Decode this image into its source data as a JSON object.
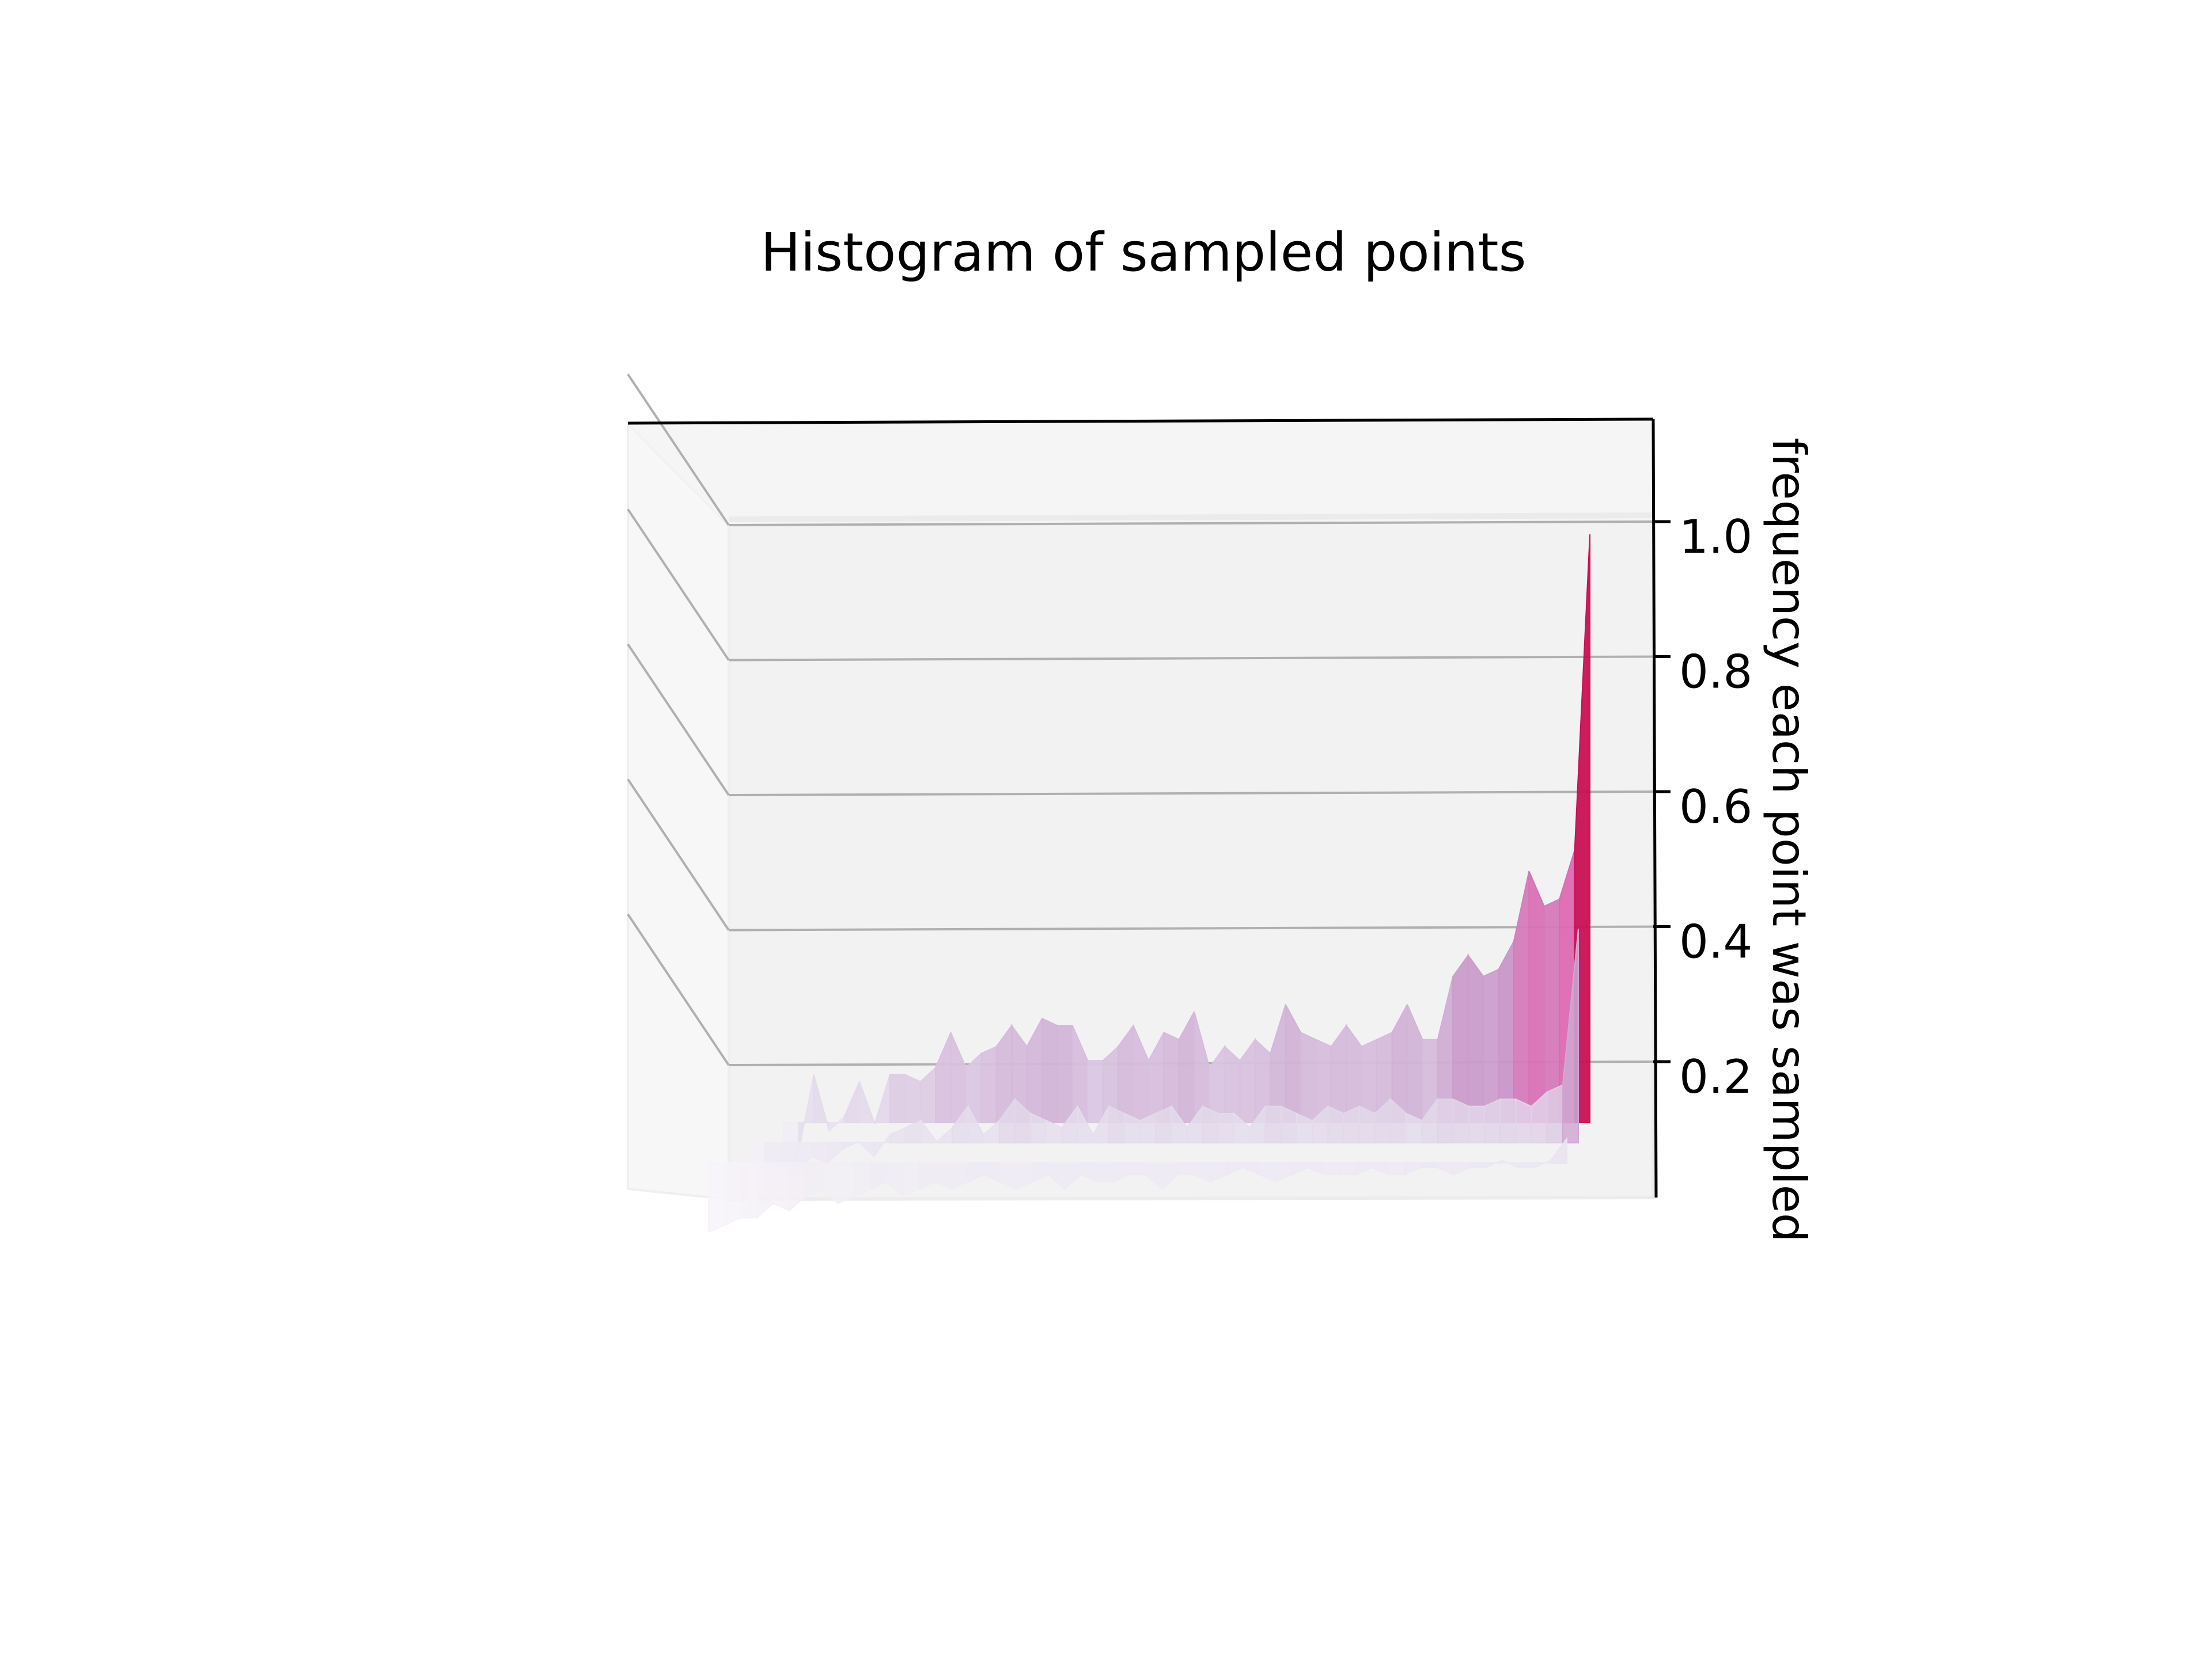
{
  "chart_data": {
    "type": "surface",
    "title": "Histogram of sampled points",
    "zlabel": "frequency each point was sampled",
    "zlim": [
      0.0,
      1.15
    ],
    "z_ticks": [
      "0.2",
      "0.4",
      "0.6",
      "0.8",
      "1.0"
    ],
    "z_tick_values": [
      0.2,
      0.4,
      0.6,
      0.8,
      1.0
    ],
    "grid": true,
    "colormap": [
      "#f7f4f9",
      "#e7e1ef",
      "#d4b9da",
      "#c994c7",
      "#df65b0",
      "#e7298a",
      "#ce1256",
      "#980043",
      "#67001f"
    ],
    "series": [
      {
        "values": [
          0.07,
          0.12,
          0.23,
          0.15,
          0.17,
          0.22,
          0.16,
          0.23,
          0.23,
          0.22,
          0.24,
          0.29,
          0.24,
          0.26,
          0.27,
          0.3,
          0.27,
          0.31,
          0.3,
          0.3,
          0.25,
          0.25,
          0.27,
          0.3,
          0.25,
          0.29,
          0.28,
          0.32,
          0.24,
          0.27,
          0.25,
          0.28,
          0.26,
          0.33,
          0.29,
          0.28,
          0.27,
          0.3,
          0.27,
          0.28,
          0.29,
          0.33,
          0.28,
          0.28,
          0.37,
          0.4,
          0.37,
          0.38,
          0.42,
          0.52,
          0.47,
          0.48,
          0.55,
          1.0
        ]
      },
      {
        "values": [
          0.05,
          0.09,
          0.12,
          0.1,
          0.13,
          0.12,
          0.14,
          0.15,
          0.13,
          0.16,
          0.17,
          0.18,
          0.15,
          0.17,
          0.2,
          0.16,
          0.18,
          0.21,
          0.19,
          0.18,
          0.17,
          0.2,
          0.16,
          0.2,
          0.19,
          0.18,
          0.19,
          0.2,
          0.17,
          0.2,
          0.19,
          0.19,
          0.17,
          0.2,
          0.2,
          0.19,
          0.18,
          0.2,
          0.19,
          0.2,
          0.19,
          0.21,
          0.19,
          0.18,
          0.21,
          0.21,
          0.2,
          0.2,
          0.21,
          0.21,
          0.2,
          0.22,
          0.23,
          0.45
        ]
      },
      {
        "values": [
          0.04,
          0.05,
          0.06,
          0.06,
          0.08,
          0.07,
          0.09,
          0.1,
          0.08,
          0.09,
          0.1,
          0.11,
          0.09,
          0.1,
          0.11,
          0.1,
          0.11,
          0.12,
          0.11,
          0.1,
          0.11,
          0.12,
          0.1,
          0.12,
          0.11,
          0.11,
          0.12,
          0.12,
          0.1,
          0.12,
          0.12,
          0.11,
          0.12,
          0.13,
          0.12,
          0.11,
          0.12,
          0.13,
          0.12,
          0.12,
          0.12,
          0.13,
          0.12,
          0.12,
          0.13,
          0.13,
          0.12,
          0.13,
          0.13,
          0.14,
          0.13,
          0.13,
          0.14,
          0.17
        ]
      }
    ]
  }
}
